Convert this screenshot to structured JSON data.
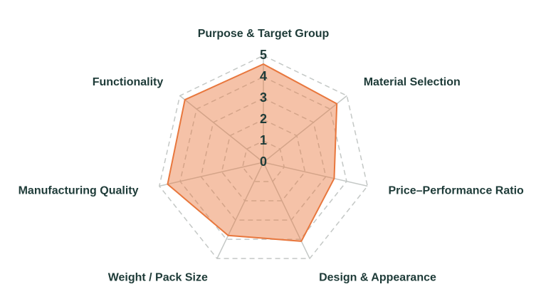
{
  "chart_data": {
    "type": "radar",
    "categories": [
      "Purpose & Target Group",
      "Material Selection",
      "Price–Performance Ratio",
      "Design & Appearance",
      "Weight / Pack Size",
      "Manufacturing Quality",
      "Functionality"
    ],
    "values": [
      4.6,
      4.4,
      3.4,
      4.1,
      3.8,
      4.6,
      4.7
    ],
    "color": "#e8773d",
    "rlim": [
      0,
      5
    ],
    "rticks": [
      0,
      1,
      2,
      3,
      4,
      5
    ],
    "grid": true
  }
}
